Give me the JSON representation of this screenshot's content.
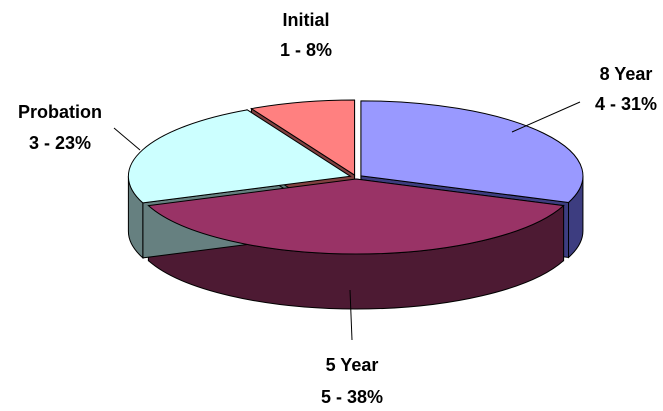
{
  "chart_data": {
    "type": "pie",
    "style": "3d-exploded",
    "slices": [
      {
        "label": "8 Year",
        "text": "4 - 31%",
        "count": 4,
        "percent": 31,
        "top_color": "#9999ff",
        "side_color": "#3d3d80"
      },
      {
        "label": "5 Year",
        "text": "5 - 38%",
        "count": 5,
        "percent": 38,
        "top_color": "#993366",
        "side_color": "#4d1a33"
      },
      {
        "label": "Probation",
        "text": "3 - 23%",
        "count": 3,
        "percent": 23,
        "top_color": "#ccffff",
        "side_color": "#668080"
      },
      {
        "label": "Initial",
        "text": "1 - 8%",
        "count": 1,
        "percent": 8,
        "top_color": "#ff8080",
        "side_color": "#804040"
      }
    ]
  }
}
